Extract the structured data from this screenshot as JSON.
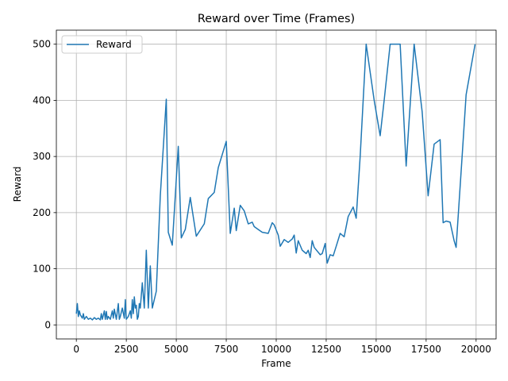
{
  "chart_data": {
    "type": "line",
    "title": "Reward over Time (Frames)",
    "xlabel": "Frame",
    "ylabel": "Reward",
    "xlim": [
      -1000,
      21000
    ],
    "ylim": [
      -25,
      525
    ],
    "xticks": [
      0,
      2500,
      5000,
      7500,
      10000,
      12500,
      15000,
      17500,
      20000
    ],
    "yticks": [
      0,
      100,
      200,
      300,
      400,
      500
    ],
    "grid": true,
    "legend": "upper left",
    "series": [
      {
        "name": "Reward",
        "color": "#1f77b4",
        "x": [
          0,
          50,
          100,
          150,
          200,
          300,
          350,
          400,
          500,
          600,
          700,
          800,
          900,
          1000,
          1100,
          1200,
          1250,
          1300,
          1400,
          1450,
          1500,
          1550,
          1600,
          1700,
          1800,
          1850,
          1900,
          2000,
          2100,
          2150,
          2200,
          2300,
          2400,
          2450,
          2500,
          2600,
          2700,
          2750,
          2800,
          2850,
          2900,
          2950,
          3000,
          3050,
          3100,
          3150,
          3200,
          3300,
          3400,
          3500,
          3600,
          3700,
          3800,
          3900,
          4000,
          4200,
          4500,
          4600,
          4800,
          5100,
          5250,
          5450,
          5700,
          6000,
          6400,
          6600,
          6900,
          7100,
          7500,
          7700,
          7900,
          8000,
          8200,
          8400,
          8600,
          8800,
          8900,
          9100,
          9300,
          9600,
          9800,
          9900,
          10100,
          10200,
          10400,
          10600,
          10800,
          10900,
          11000,
          11100,
          11300,
          11500,
          11600,
          11700,
          11800,
          11900,
          12200,
          12300,
          12450,
          12550,
          12700,
          12850,
          13000,
          13200,
          13400,
          13600,
          13850,
          14000,
          14200,
          14500,
          14900,
          15200,
          15400,
          15700,
          16200,
          16500,
          16900,
          17300,
          17600,
          17900,
          18200,
          18350,
          18500,
          18700,
          18900,
          19000,
          19300,
          19500,
          19950
        ],
        "values": [
          20,
          38,
          15,
          25,
          18,
          12,
          20,
          10,
          15,
          10,
          12,
          9,
          13,
          10,
          12,
          9,
          20,
          10,
          25,
          10,
          24,
          10,
          15,
          10,
          25,
          12,
          28,
          10,
          38,
          10,
          15,
          30,
          12,
          45,
          10,
          15,
          25,
          12,
          45,
          20,
          50,
          30,
          35,
          10,
          15,
          38,
          30,
          75,
          30,
          133,
          30,
          105,
          30,
          45,
          60,
          230,
          402,
          165,
          142,
          318,
          155,
          170,
          227,
          158,
          180,
          225,
          236,
          280,
          327,
          163,
          208,
          168,
          213,
          203,
          180,
          183,
          175,
          170,
          165,
          163,
          182,
          178,
          160,
          140,
          152,
          147,
          153,
          160,
          128,
          150,
          133,
          127,
          133,
          120,
          150,
          138,
          125,
          127,
          145,
          110,
          125,
          123,
          140,
          163,
          157,
          193,
          210,
          190,
          300,
          500,
          400,
          337,
          400,
          500,
          500,
          283,
          500,
          380,
          230,
          322,
          330,
          182,
          185,
          183,
          150,
          138,
          300,
          410,
          500
        ]
      }
    ]
  }
}
